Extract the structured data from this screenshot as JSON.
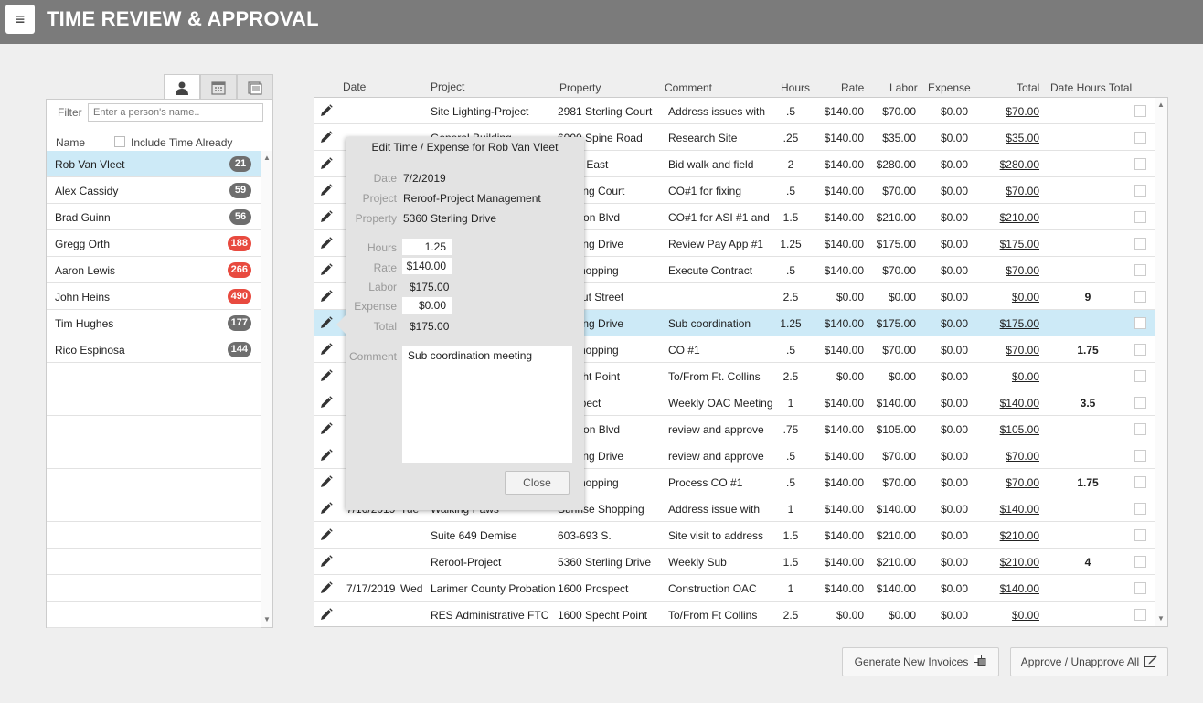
{
  "header": {
    "title": "TIME REVIEW & APPROVAL",
    "menu_icon": "hamburger-icon"
  },
  "left": {
    "tabs": [
      {
        "name": "person-icon",
        "glyph": "👤"
      },
      {
        "name": "calendar-icon",
        "glyph": "▦"
      },
      {
        "name": "document-icon",
        "glyph": "▣"
      }
    ],
    "filter_label": "Filter",
    "filter_placeholder": "Enter a person's name..",
    "name_header": "Name",
    "include_invoiced_label": "Include Time Already Invoiced",
    "people": [
      {
        "name": "Rob Van Vleet",
        "count": "21",
        "badge_color": "gray",
        "selected": true
      },
      {
        "name": "Alex Cassidy",
        "count": "59",
        "badge_color": "gray"
      },
      {
        "name": "Brad Guinn",
        "count": "56",
        "badge_color": "gray"
      },
      {
        "name": "Gregg Orth",
        "count": "188",
        "badge_color": "red"
      },
      {
        "name": "Aaron Lewis",
        "count": "266",
        "badge_color": "red"
      },
      {
        "name": "John Heins",
        "count": "490",
        "badge_color": "red"
      },
      {
        "name": "Tim Hughes",
        "count": "177",
        "badge_color": "gray"
      },
      {
        "name": "Rico Espinosa",
        "count": "144",
        "badge_color": "gray"
      }
    ],
    "empty_rows": 10
  },
  "table": {
    "headers": {
      "date": "Date",
      "project": "Project",
      "property": "Property",
      "comment": "Comment",
      "hours": "Hours",
      "rate": "Rate",
      "labor": "Labor",
      "expense": "Expense",
      "total": "Total",
      "date_hours_total": "Date Hours Total"
    },
    "rows": [
      {
        "date": "",
        "day": "",
        "project": "Site Lighting-Project",
        "property": "2981 Sterling Court",
        "comment": "Address issues with",
        "hours": ".5",
        "rate": "$140.00",
        "labor": "$70.00",
        "expense": "$0.00",
        "total": "$70.00",
        "dht": ""
      },
      {
        "date": "",
        "day": "",
        "project": "General Building",
        "property": "6000 Spine Road",
        "comment": "Research Site",
        "hours": ".25",
        "rate": "$140.00",
        "labor": "$35.00",
        "expense": "$0.00",
        "total": "$35.00",
        "dht": ""
      },
      {
        "date": "",
        "day": "",
        "project": "",
        "property": "Pearl East",
        "comment": "Bid walk and field",
        "hours": "2",
        "rate": "$140.00",
        "labor": "$280.00",
        "expense": "$0.00",
        "total": "$280.00",
        "dht": ""
      },
      {
        "date": "",
        "day": "",
        "project": "",
        "property": "Sterling Court",
        "comment": "CO#1 for fixing",
        "hours": ".5",
        "rate": "$140.00",
        "labor": "$70.00",
        "expense": "$0.00",
        "total": "$70.00",
        "dht": ""
      },
      {
        "date": "",
        "day": "",
        "project": "",
        "property": "Canyon Blvd",
        "comment": "CO#1 for ASI #1 and",
        "hours": "1.5",
        "rate": "$140.00",
        "labor": "$210.00",
        "expense": "$0.00",
        "total": "$210.00",
        "dht": ""
      },
      {
        "date": "",
        "day": "",
        "project": "",
        "property": "Sterling Drive",
        "comment": "Review Pay App #1",
        "hours": "1.25",
        "rate": "$140.00",
        "labor": "$175.00",
        "expense": "$0.00",
        "total": "$175.00",
        "dht": ""
      },
      {
        "date": "",
        "day": "",
        "project": "",
        "property": "se Shopping",
        "comment": "Execute Contract",
        "hours": ".5",
        "rate": "$140.00",
        "labor": "$70.00",
        "expense": "$0.00",
        "total": "$70.00",
        "dht": ""
      },
      {
        "date": "",
        "day": "",
        "project": "",
        "property": "Walnut Street",
        "comment": "",
        "hours": "2.5",
        "rate": "$0.00",
        "labor": "$0.00",
        "expense": "$0.00",
        "total": "$0.00",
        "dht": "9"
      },
      {
        "date": "",
        "day": "",
        "project": "",
        "property": "Sterling Drive",
        "comment": "Sub coordination",
        "hours": "1.25",
        "rate": "$140.00",
        "labor": "$175.00",
        "expense": "$0.00",
        "total": "$175.00",
        "dht": "",
        "highlight": true
      },
      {
        "date": "",
        "day": "",
        "project": "",
        "property": "se Shopping",
        "comment": "CO #1",
        "hours": ".5",
        "rate": "$140.00",
        "labor": "$70.00",
        "expense": "$0.00",
        "total": "$70.00",
        "dht": "1.75"
      },
      {
        "date": "",
        "day": "",
        "project": "",
        "property": "Specht Point",
        "comment": "To/From Ft. Collins",
        "hours": "2.5",
        "rate": "$0.00",
        "labor": "$0.00",
        "expense": "$0.00",
        "total": "$0.00",
        "dht": ""
      },
      {
        "date": "",
        "day": "",
        "project": "",
        "property": "Prospect",
        "comment": "Weekly OAC Meeting",
        "hours": "1",
        "rate": "$140.00",
        "labor": "$140.00",
        "expense": "$0.00",
        "total": "$140.00",
        "dht": "3.5"
      },
      {
        "date": "",
        "day": "",
        "project": "",
        "property": "Canyon Blvd",
        "comment": "review and approve",
        "hours": ".75",
        "rate": "$140.00",
        "labor": "$105.00",
        "expense": "$0.00",
        "total": "$105.00",
        "dht": ""
      },
      {
        "date": "",
        "day": "",
        "project": "",
        "property": "Sterling Drive",
        "comment": "review and approve",
        "hours": ".5",
        "rate": "$140.00",
        "labor": "$70.00",
        "expense": "$0.00",
        "total": "$70.00",
        "dht": ""
      },
      {
        "date": "",
        "day": "",
        "project": "",
        "property": "se Shopping",
        "comment": "Process CO #1",
        "hours": ".5",
        "rate": "$140.00",
        "labor": "$70.00",
        "expense": "$0.00",
        "total": "$70.00",
        "dht": "1.75"
      },
      {
        "date": "7/16/2019",
        "day": "Tue",
        "project": "Walking Paws",
        "property": "Sunrise Shopping",
        "comment": "Address issue with",
        "hours": "1",
        "rate": "$140.00",
        "labor": "$140.00",
        "expense": "$0.00",
        "total": "$140.00",
        "dht": ""
      },
      {
        "date": "",
        "day": "",
        "project": "Suite 649 Demise",
        "property": "603-693 S.",
        "comment": "Site visit to address",
        "hours": "1.5",
        "rate": "$140.00",
        "labor": "$210.00",
        "expense": "$0.00",
        "total": "$210.00",
        "dht": ""
      },
      {
        "date": "",
        "day": "",
        "project": "Reroof-Project",
        "property": "5360 Sterling Drive",
        "comment": "Weekly Sub",
        "hours": "1.5",
        "rate": "$140.00",
        "labor": "$210.00",
        "expense": "$0.00",
        "total": "$210.00",
        "dht": "4"
      },
      {
        "date": "7/17/2019",
        "day": "Wed",
        "project": "Larimer County Probation",
        "property": "1600 Prospect",
        "comment": "Construction OAC",
        "hours": "1",
        "rate": "$140.00",
        "labor": "$140.00",
        "expense": "$0.00",
        "total": "$140.00",
        "dht": ""
      },
      {
        "date": "",
        "day": "",
        "project": "RES Administrative FTC",
        "property": "1600 Specht Point",
        "comment": "To/From Ft Collins",
        "hours": "2.5",
        "rate": "$0.00",
        "labor": "$0.00",
        "expense": "$0.00",
        "total": "$0.00",
        "dht": ""
      }
    ]
  },
  "popup": {
    "title": "Edit Time / Expense for Rob Van Vleet",
    "date_label": "Date",
    "date": "7/2/2019",
    "project_label": "Project",
    "project": "Reroof-Project Management",
    "property_label": "Property",
    "property": "5360 Sterling Drive",
    "hours_label": "Hours",
    "hours": "1.25",
    "rate_label": "Rate",
    "rate": "$140.00",
    "labor_label": "Labor",
    "labor": "$175.00",
    "expense_label": "Expense",
    "expense": "$0.00",
    "total_label": "Total",
    "total": "$175.00",
    "comment_label": "Comment",
    "comment": "Sub coordination meeting",
    "close_label": "Close"
  },
  "buttons": {
    "generate_label": "Generate New Invoices",
    "approve_label": "Approve / Unapprove All"
  }
}
